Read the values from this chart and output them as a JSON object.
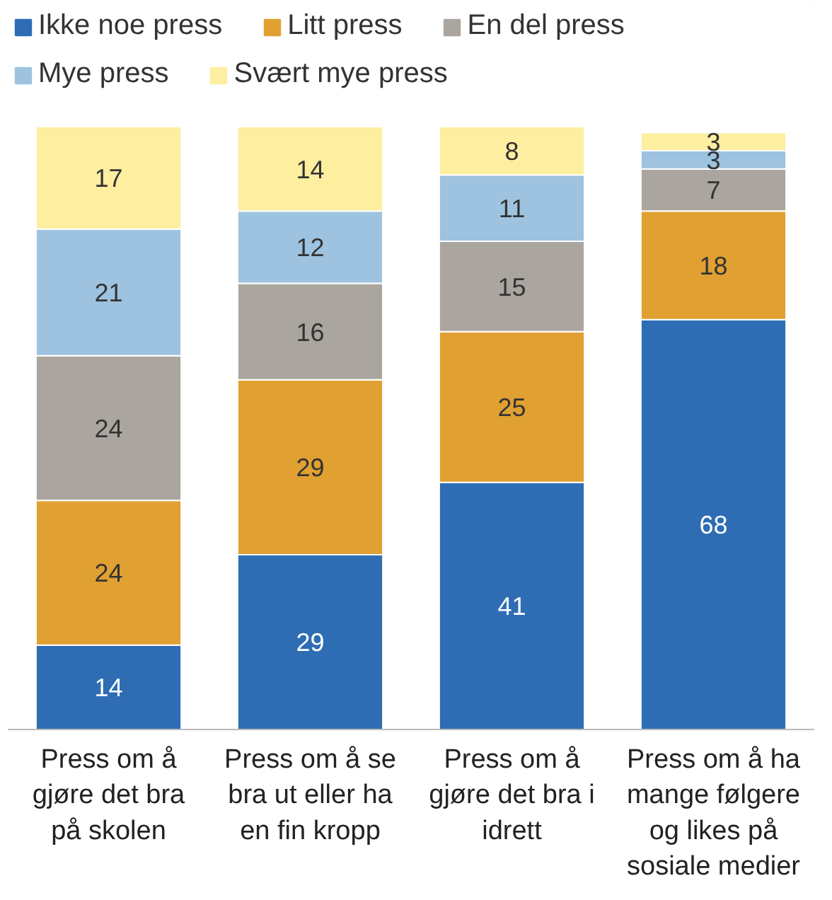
{
  "chart_data": {
    "type": "bar",
    "stacked": true,
    "data_labels": true,
    "legend": "top",
    "grid": false,
    "tick_labels": "x",
    "ylim": [
      0,
      100
    ],
    "categories": [
      "Press om å gjøre det bra på skolen",
      "Press om å se bra ut eller ha en fin kropp",
      "Press om å gjøre det bra i idrett",
      "Press om å ha mange følgere og likes på sosiale medier"
    ],
    "series": [
      {
        "name": "Ikke noe press",
        "color": "#2e6db4",
        "values": [
          14,
          29,
          41,
          68
        ]
      },
      {
        "name": "Litt press",
        "color": "#e0a032",
        "values": [
          24,
          29,
          25,
          18
        ]
      },
      {
        "name": "En del press",
        "color": "#aba59f",
        "values": [
          24,
          16,
          15,
          7
        ]
      },
      {
        "name": "Mye press",
        "color": "#9dc3e0",
        "values": [
          21,
          12,
          11,
          3
        ]
      },
      {
        "name": "Svært mye press",
        "color": "#fdeea0",
        "values": [
          17,
          14,
          8,
          3
        ]
      }
    ]
  }
}
